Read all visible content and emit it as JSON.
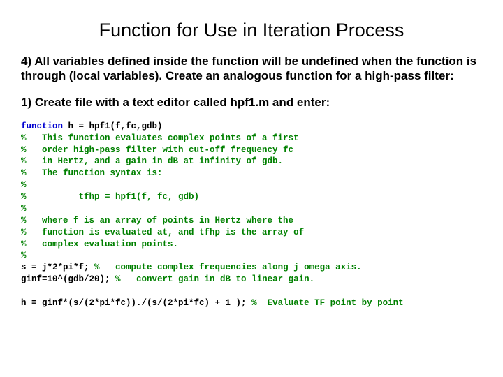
{
  "title": "Function for Use in Iteration Process",
  "para1": "4) All variables defined inside the function will be undefined when the function is through (local variables). Create an analogous function for a high-pass filter:",
  "para2": "1) Create file with a text editor called hpf1.m and enter:",
  "code": {
    "l1_kw": "function",
    "l1_rest": " h = hpf1(f,fc,gdb)",
    "l2": "%   This function evaluates complex points of a first",
    "l3": "%   order high-pass filter with cut-off frequency fc",
    "l4": "%   in Hertz, and a gain in dB at infinity of gdb.",
    "l5": "%   The function syntax is:",
    "l6": "%",
    "l7": "%          tfhp = hpf1(f, fc, gdb)",
    "l8": "%",
    "l9": "%   where f is an array of points in Hertz where the",
    "l10": "%   function is evaluated at, and tfhp is the array of",
    "l11": "%   complex evaluation points.",
    "l12": "%",
    "l13a": "s = j*2*pi*f; ",
    "l13b": "%   compute complex frequencies along j omega axis.",
    "l14a": "ginf=10^(gdb/20); ",
    "l14b": "%   convert gain in dB to linear gain.",
    "l15a": "h = ginf*(s/(2*pi*fc))./(s/(2*pi*fc) + 1 ); ",
    "l15b": "%  Evaluate TF point by point"
  },
  "colors": {
    "keyword": "#0000d0",
    "comment": "#008000",
    "text": "#000000",
    "background": "#ffffff"
  },
  "fonts": {
    "body_family": "Comic Sans MS",
    "code_family": "Courier New",
    "title_size_pt": 27,
    "para_size_pt": 17,
    "code_size_pt": 12.5
  }
}
